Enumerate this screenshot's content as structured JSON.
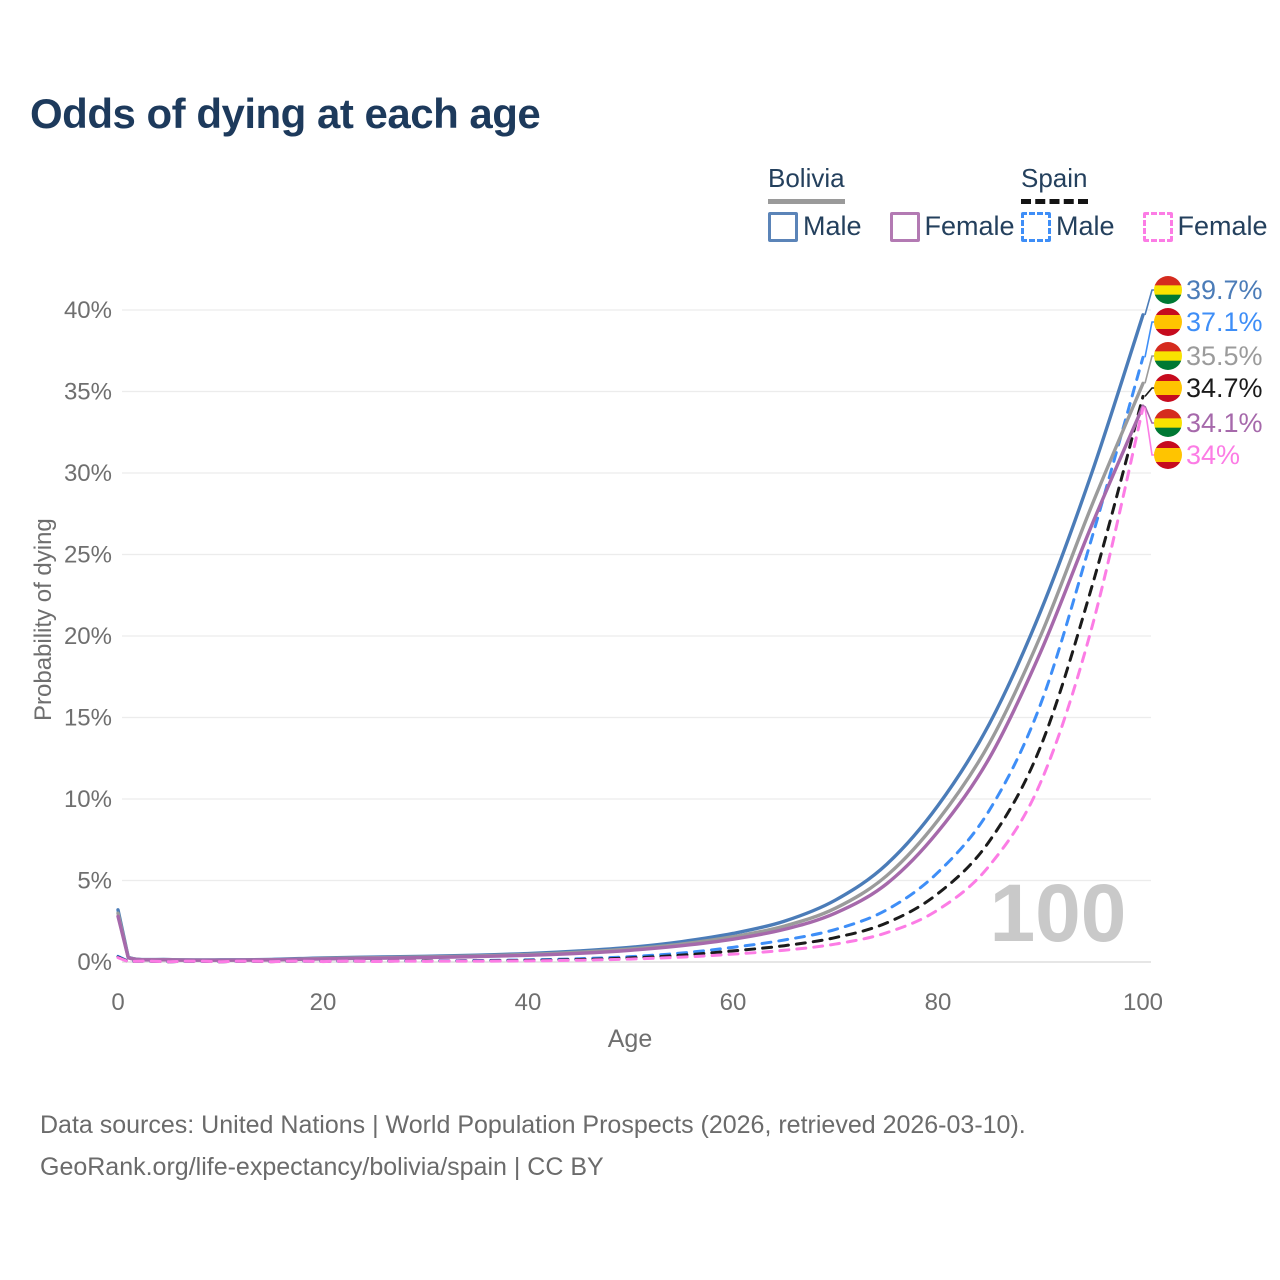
{
  "title": "Odds of dying at each age",
  "legend": {
    "groups": [
      {
        "label": "Bolivia",
        "line_style": "solid",
        "line_color": "#9a9a9a"
      },
      {
        "label": "Spain",
        "line_style": "dashed",
        "line_color": "#141414"
      }
    ],
    "items": [
      {
        "label": "Male",
        "country": "Bolivia",
        "color": "#5b84b8",
        "style": "solid"
      },
      {
        "label": "Female",
        "country": "Bolivia",
        "color": "#b37ab3",
        "style": "solid"
      },
      {
        "label": "Male",
        "country": "Spain",
        "color": "#3e8ef7",
        "style": "dashed"
      },
      {
        "label": "Female",
        "country": "Spain",
        "color": "#fc7ce5",
        "style": "dashed"
      }
    ]
  },
  "chart_data": {
    "type": "line",
    "title": "Odds of dying at each age",
    "xlabel": "Age",
    "ylabel": "Probability of dying",
    "xlim": [
      0,
      100
    ],
    "ylim": [
      0,
      40
    ],
    "x_ticks": [
      "0",
      "20",
      "40",
      "60",
      "80",
      "100"
    ],
    "y_ticks": [
      "0%",
      "5%",
      "10%",
      "15%",
      "20%",
      "25%",
      "30%",
      "35%",
      "40%"
    ],
    "grid": "horizontal",
    "legend_position": "top-right",
    "age_ticker": "100",
    "ages": [
      0,
      1,
      5,
      10,
      15,
      20,
      25,
      30,
      35,
      40,
      45,
      50,
      55,
      60,
      65,
      70,
      75,
      80,
      85,
      90,
      95,
      100
    ],
    "series": [
      {
        "name": "Bolivia Male",
        "country": "Bolivia",
        "sex": "Male",
        "flag": "bolivia",
        "color": "#4b7cb8",
        "dash": "solid",
        "end_label": "39.7%",
        "end_value": 39.7,
        "values": [
          3.2,
          0.3,
          0.15,
          0.13,
          0.16,
          0.25,
          0.3,
          0.35,
          0.42,
          0.52,
          0.68,
          0.9,
          1.25,
          1.75,
          2.5,
          3.8,
          6.0,
          9.6,
          14.6,
          21.5,
          30.0,
          39.7
        ]
      },
      {
        "name": "Spain Male",
        "country": "Spain",
        "sex": "Male",
        "flag": "spain",
        "color": "#3e8ef7",
        "dash": "dashed",
        "end_label": "37.1%",
        "end_value": 37.1,
        "values": [
          0.35,
          0.04,
          0.015,
          0.015,
          0.03,
          0.05,
          0.06,
          0.07,
          0.09,
          0.13,
          0.2,
          0.33,
          0.55,
          0.9,
          1.35,
          2.0,
          3.2,
          5.5,
          9.3,
          15.8,
          26.0,
          37.1
        ]
      },
      {
        "name": "Bolivia Both sexes",
        "country": "Bolivia",
        "sex": "Both",
        "flag": "bolivia",
        "color": "#9b9b9b",
        "dash": "solid",
        "end_label": "35.5%",
        "end_value": 35.5,
        "values": [
          3.0,
          0.28,
          0.14,
          0.12,
          0.14,
          0.22,
          0.26,
          0.31,
          0.37,
          0.46,
          0.6,
          0.8,
          1.1,
          1.55,
          2.2,
          3.3,
          5.3,
          8.7,
          13.4,
          20.0,
          28.0,
          35.5
        ]
      },
      {
        "name": "Spain Both sexes",
        "country": "Spain",
        "sex": "Both",
        "flag": "spain",
        "color": "#1b1b1b",
        "dash": "dashed",
        "end_label": "34.7%",
        "end_value": 34.7,
        "values": [
          0.3,
          0.03,
          0.012,
          0.012,
          0.02,
          0.04,
          0.05,
          0.06,
          0.07,
          0.1,
          0.15,
          0.25,
          0.42,
          0.68,
          1.0,
          1.5,
          2.4,
          4.2,
          7.4,
          13.2,
          23.0,
          34.7
        ]
      },
      {
        "name": "Bolivia Female",
        "country": "Bolivia",
        "sex": "Female",
        "flag": "bolivia",
        "color": "#a669ab",
        "dash": "solid",
        "end_label": "34.1%",
        "end_value": 34.1,
        "values": [
          2.8,
          0.26,
          0.13,
          0.11,
          0.13,
          0.19,
          0.23,
          0.27,
          0.33,
          0.41,
          0.53,
          0.72,
          1.0,
          1.4,
          2.0,
          3.0,
          4.8,
          8.0,
          12.5,
          19.0,
          26.8,
          34.1
        ]
      },
      {
        "name": "Spain Female",
        "country": "Spain",
        "sex": "Female",
        "flag": "spain",
        "color": "#fc7ce5",
        "dash": "dashed",
        "end_label": "34%",
        "end_value": 34.0,
        "values": [
          0.27,
          0.025,
          0.01,
          0.01,
          0.015,
          0.025,
          0.03,
          0.04,
          0.05,
          0.07,
          0.11,
          0.18,
          0.3,
          0.48,
          0.72,
          1.1,
          1.8,
          3.2,
          5.9,
          11.0,
          20.5,
          34.0
        ]
      }
    ],
    "flag_colors": {
      "bolivia": [
        "#d52b1e",
        "#f9e300",
        "#007934"
      ],
      "spain": [
        "#c60b1e",
        "#ffc400",
        "#c60b1e"
      ]
    }
  },
  "footer": {
    "line1": "Data sources: United Nations | World Population Prospects (2026, retrieved 2026-03-10).",
    "line2": "GeoRank.org/life-expectancy/bolivia/spain | CC BY"
  }
}
